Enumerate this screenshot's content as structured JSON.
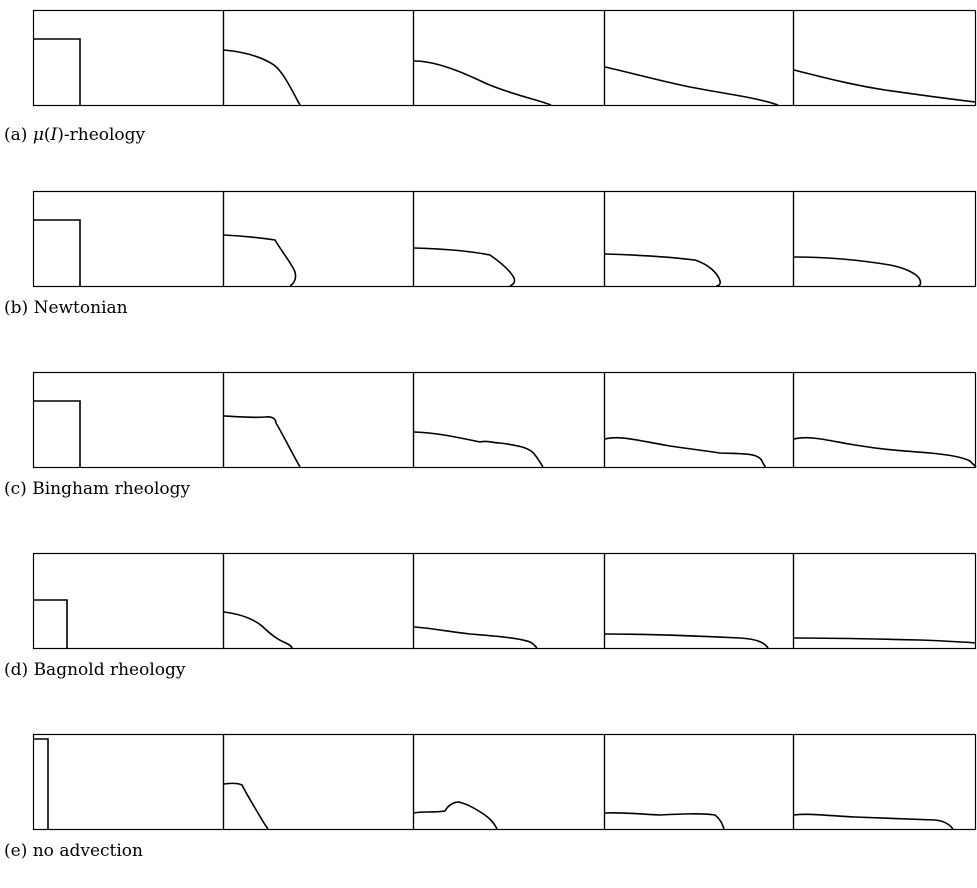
{
  "figure": {
    "rows": [
      {
        "id": "a",
        "caption": {
          "label": "(a)",
          "math": "μ",
          "open": "(",
          "sym": "I",
          "close": ")",
          "rest": "-rheology"
        }
      },
      {
        "id": "b",
        "caption": {
          "label": "(b)",
          "text": "Newtonian"
        }
      },
      {
        "id": "c",
        "caption": {
          "label": "(c)",
          "text": "Bingham rheology"
        }
      },
      {
        "id": "d",
        "caption": {
          "label": "(d)",
          "text": "Bagnold rheology"
        }
      },
      {
        "id": "e",
        "caption": {
          "label": "(e)",
          "text": "no advection"
        }
      }
    ],
    "colors": {
      "line": "#000000",
      "background": "#ffffff"
    }
  }
}
